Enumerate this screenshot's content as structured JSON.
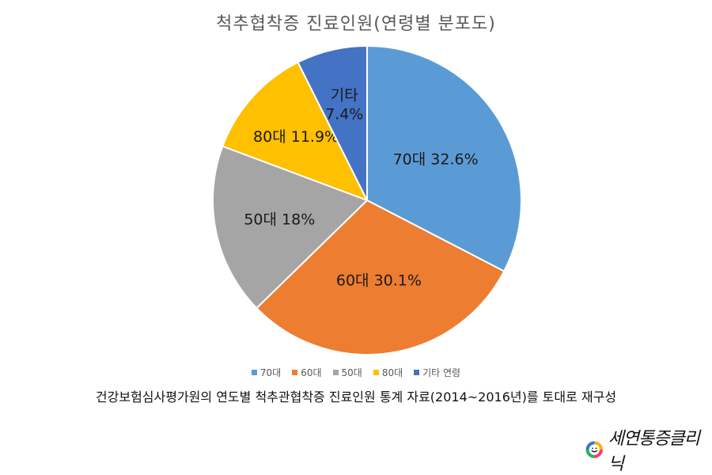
{
  "chart_data": {
    "type": "pie",
    "title": "척추협착증 진료인원(연령별 분포도)",
    "slices": [
      {
        "key": "70",
        "legend": "70대",
        "label": "70대 32.6%",
        "value": 32.6,
        "color": "#5b9bd5"
      },
      {
        "key": "60",
        "legend": "60대",
        "label": "60대 30.1%",
        "value": 30.1,
        "color": "#ed7d31"
      },
      {
        "key": "50",
        "legend": "50대",
        "label": "50대 18%",
        "value": 18.0,
        "color": "#a5a5a5"
      },
      {
        "key": "80",
        "legend": "80대",
        "label": "80대 11.9%",
        "value": 11.9,
        "color": "#ffc000"
      },
      {
        "key": "etc",
        "legend": "기타 연령",
        "label": "기타\n7.4%",
        "value": 7.4,
        "color": "#4472c4"
      }
    ],
    "legend_position": "bottom",
    "start_angle": "12 o'clock",
    "direction": "clockwise"
  },
  "caption": "건강보험심사평가원의 연도별 척추관협착증 진료인원 통계 자료(2014~2016년)를 토대로 재구성",
  "logo": {
    "text": "세연통증클리닉"
  }
}
